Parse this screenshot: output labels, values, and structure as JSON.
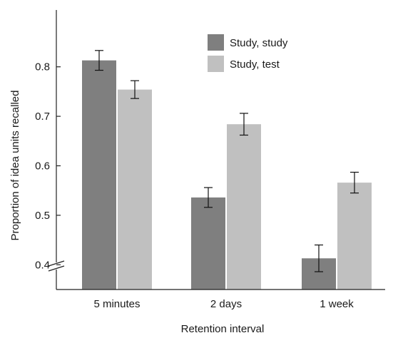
{
  "chart_data": {
    "type": "bar",
    "title": "",
    "xlabel": "Retention interval",
    "ylabel": "Proportion of idea units recalled",
    "categories": [
      "5 minutes",
      "2 days",
      "1 week"
    ],
    "ylim": [
      0.35,
      0.9
    ],
    "yticks": [
      "0.4",
      "0.5",
      "0.6",
      "0.7",
      "0.8"
    ],
    "axis_break": true,
    "grid": false,
    "legend_position": "top-right",
    "series": [
      {
        "name": "Study, study",
        "color": "#7f7f7f",
        "values": [
          0.813,
          0.536,
          0.413
        ],
        "error": [
          0.02,
          0.02,
          0.027
        ]
      },
      {
        "name": "Study, test",
        "color": "#c0c0c0",
        "values": [
          0.754,
          0.684,
          0.566
        ],
        "error": [
          0.018,
          0.022,
          0.021
        ]
      }
    ]
  }
}
